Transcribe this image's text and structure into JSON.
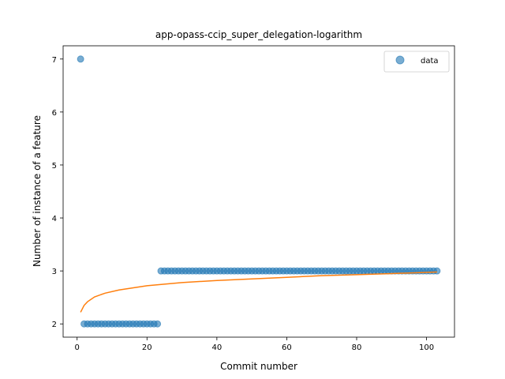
{
  "chart_data": {
    "type": "scatter",
    "title": "app-opass-ccip_super_delegation-logarithm",
    "xlabel": "Commit number",
    "ylabel": "Number of instance of a feature",
    "xlim": [
      -4,
      108
    ],
    "ylim": [
      1.75,
      7.25
    ],
    "xticks": [
      0,
      20,
      40,
      60,
      80,
      100
    ],
    "yticks": [
      2,
      3,
      4,
      5,
      6,
      7
    ],
    "grid": false,
    "legend": {
      "position": "top-right",
      "entries": [
        "data"
      ]
    },
    "colors": {
      "data": "#1f77b4",
      "fit": "#ff7f0e"
    },
    "series": [
      {
        "name": "data",
        "kind": "scatter",
        "segments": [
          {
            "x_from": 1,
            "x_to": 1,
            "y": 7
          },
          {
            "x_from": 2,
            "x_to": 23,
            "y": 2
          },
          {
            "x_from": 24,
            "x_to": 103,
            "y": 3
          }
        ]
      },
      {
        "kind": "line",
        "model": "logarithmic",
        "x": [
          1,
          2,
          3,
          5,
          8,
          12,
          20,
          30,
          40,
          50,
          60,
          70,
          80,
          90,
          103
        ],
        "y": [
          2.22,
          2.35,
          2.42,
          2.51,
          2.58,
          2.64,
          2.72,
          2.78,
          2.82,
          2.85,
          2.88,
          2.91,
          2.93,
          2.95,
          2.98
        ]
      }
    ]
  }
}
